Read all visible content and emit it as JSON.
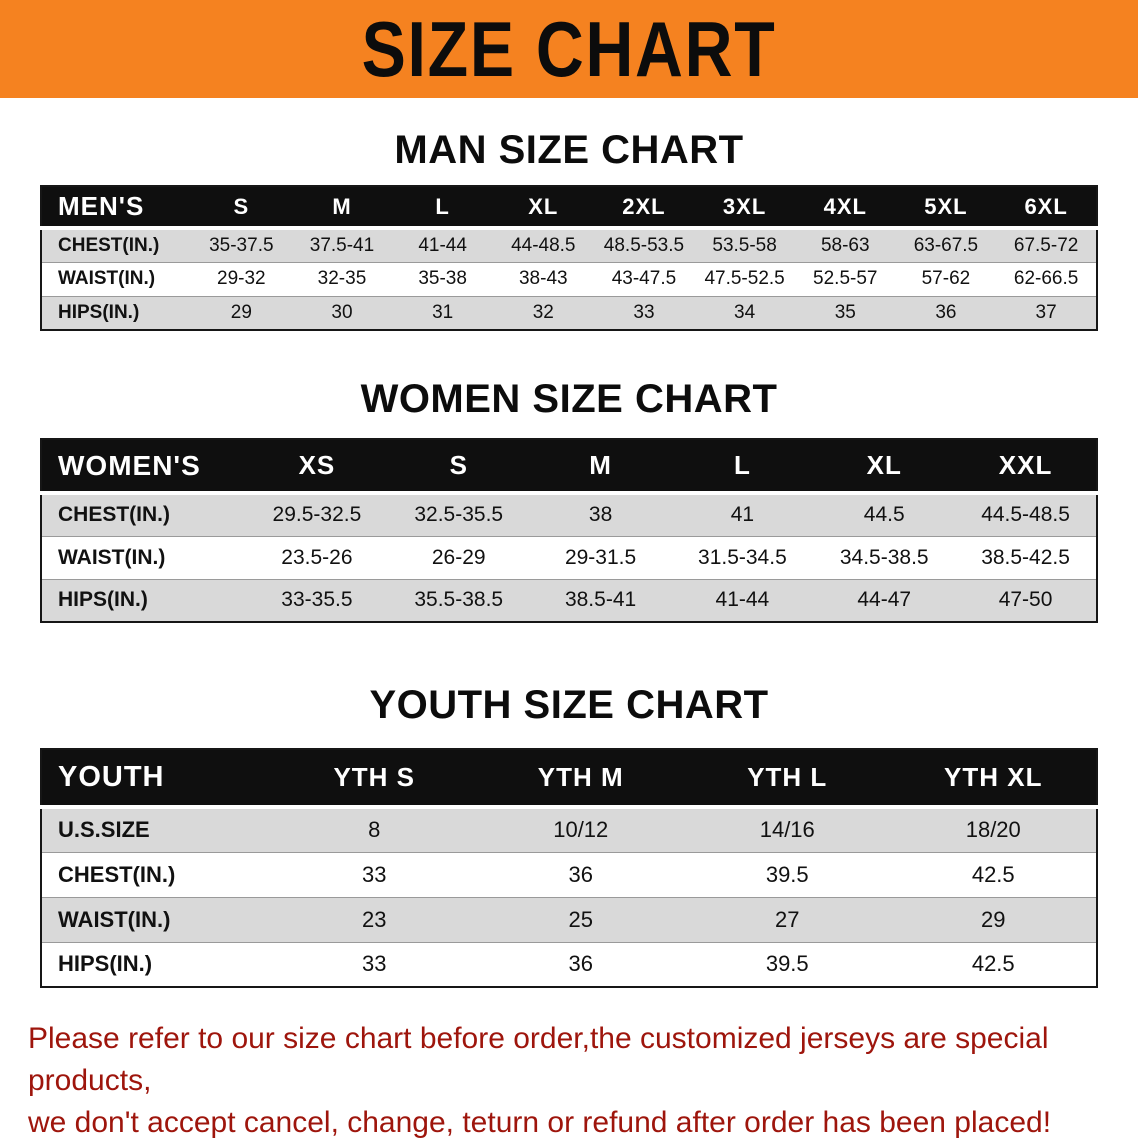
{
  "banner": {
    "title": "SIZE CHART"
  },
  "colors": {
    "banner_bg": "#f58220",
    "header_bg": "#0f0f0f",
    "stripe": "#d9d9d9",
    "disclaimer_red": "#9e150c"
  },
  "men": {
    "heading": "MAN SIZE CHART",
    "table": {
      "header": [
        "MEN'S",
        "S",
        "M",
        "L",
        "XL",
        "2XL",
        "3XL",
        "4XL",
        "5XL",
        "6XL"
      ],
      "rows": [
        [
          "CHEST(IN.)",
          "35-37.5",
          "37.5-41",
          "41-44",
          "44-48.5",
          "48.5-53.5",
          "53.5-58",
          "58-63",
          "63-67.5",
          "67.5-72"
        ],
        [
          "WAIST(IN.)",
          "29-32",
          "32-35",
          "35-38",
          "38-43",
          "43-47.5",
          "47.5-52.5",
          "52.5-57",
          "57-62",
          "62-66.5"
        ],
        [
          "HIPS(IN.)",
          "29",
          "30",
          "31",
          "32",
          "33",
          "34",
          "35",
          "36",
          "37"
        ]
      ]
    }
  },
  "women": {
    "heading": "WOMEN SIZE CHART",
    "table": {
      "header": [
        "WOMEN'S",
        "XS",
        "S",
        "M",
        "L",
        "XL",
        "XXL"
      ],
      "rows": [
        [
          "CHEST(IN.)",
          "29.5-32.5",
          "32.5-35.5",
          "38",
          "41",
          "44.5",
          "44.5-48.5"
        ],
        [
          "WAIST(IN.)",
          "23.5-26",
          "26-29",
          "29-31.5",
          "31.5-34.5",
          "34.5-38.5",
          "38.5-42.5"
        ],
        [
          "HIPS(IN.)",
          "33-35.5",
          "35.5-38.5",
          "38.5-41",
          "41-44",
          "44-47",
          "47-50"
        ]
      ]
    }
  },
  "youth": {
    "heading": "YOUTH SIZE CHART",
    "table": {
      "header": [
        "YOUTH",
        "YTH S",
        "YTH M",
        "YTH L",
        "YTH XL"
      ],
      "rows": [
        [
          "U.S.SIZE",
          "8",
          "10/12",
          "14/16",
          "18/20"
        ],
        [
          "CHEST(IN.)",
          "33",
          "36",
          "39.5",
          "42.5"
        ],
        [
          "WAIST(IN.)",
          "23",
          "25",
          "27",
          "29"
        ],
        [
          "HIPS(IN.)",
          "33",
          "36",
          "39.5",
          "42.5"
        ]
      ]
    }
  },
  "disclaimer": {
    "line1": "Please refer to our size chart before order,the customized jerseys are special products,",
    "line2": "we don't accept cancel, change, teturn or refund after order has been placed!"
  }
}
